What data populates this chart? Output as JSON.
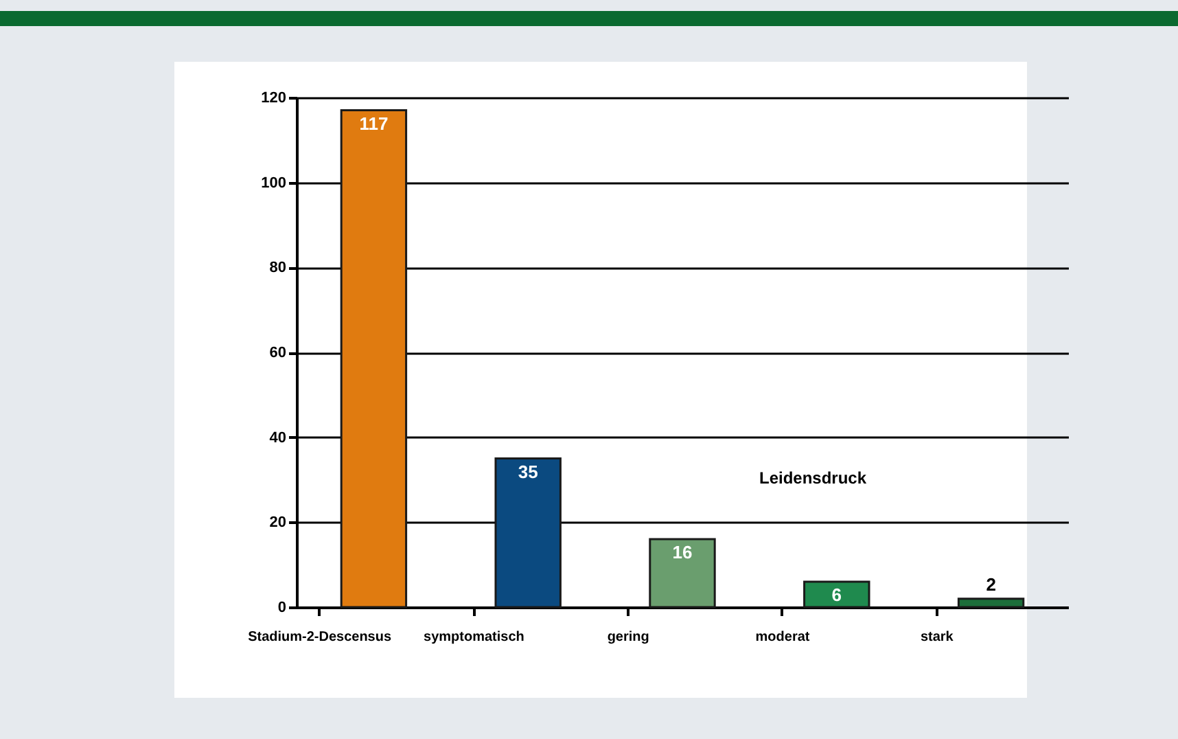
{
  "chart_data": {
    "type": "bar",
    "categories": [
      "Stadium-2-Descensus",
      "symptomatisch",
      "gering",
      "moderat",
      "stark"
    ],
    "values": [
      117,
      35,
      16,
      6,
      2
    ],
    "colors": [
      "#e07b10",
      "#0b4a80",
      "#6a9e6e",
      "#1f8a4e",
      "#1c6e3a"
    ],
    "ylim": [
      0,
      120
    ],
    "yticks": [
      0,
      20,
      40,
      60,
      80,
      100,
      120
    ],
    "grid": "y",
    "data_labels": true,
    "annotations": [
      "Leidensdruck"
    ]
  }
}
